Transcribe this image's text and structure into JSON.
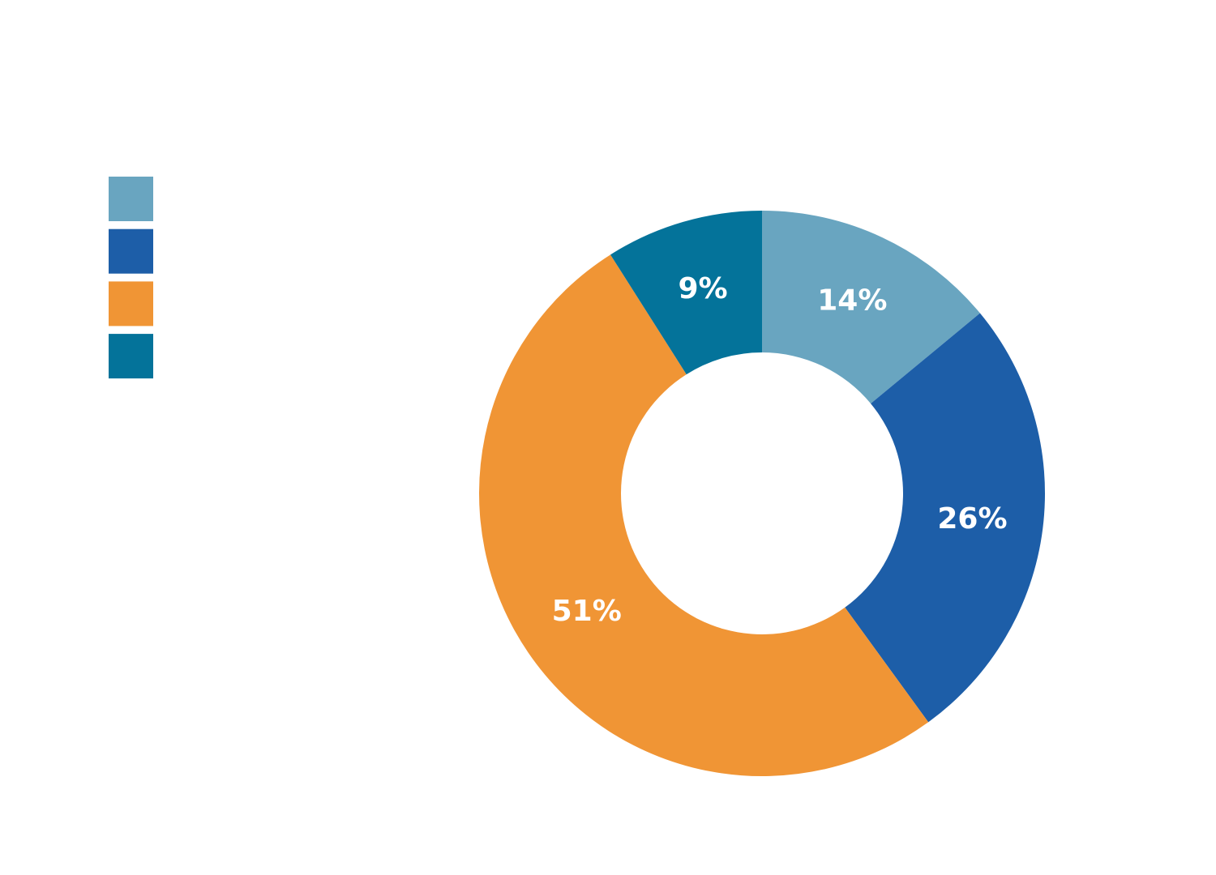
{
  "chart_data": {
    "type": "donut",
    "values": [
      14,
      26,
      51,
      9
    ],
    "value_labels": [
      "14%",
      "26%",
      "51%",
      "9%"
    ],
    "colors": [
      "#69a5c0",
      "#1d5ea8",
      "#f09535",
      "#04739a"
    ],
    "legend": "top-left"
  }
}
